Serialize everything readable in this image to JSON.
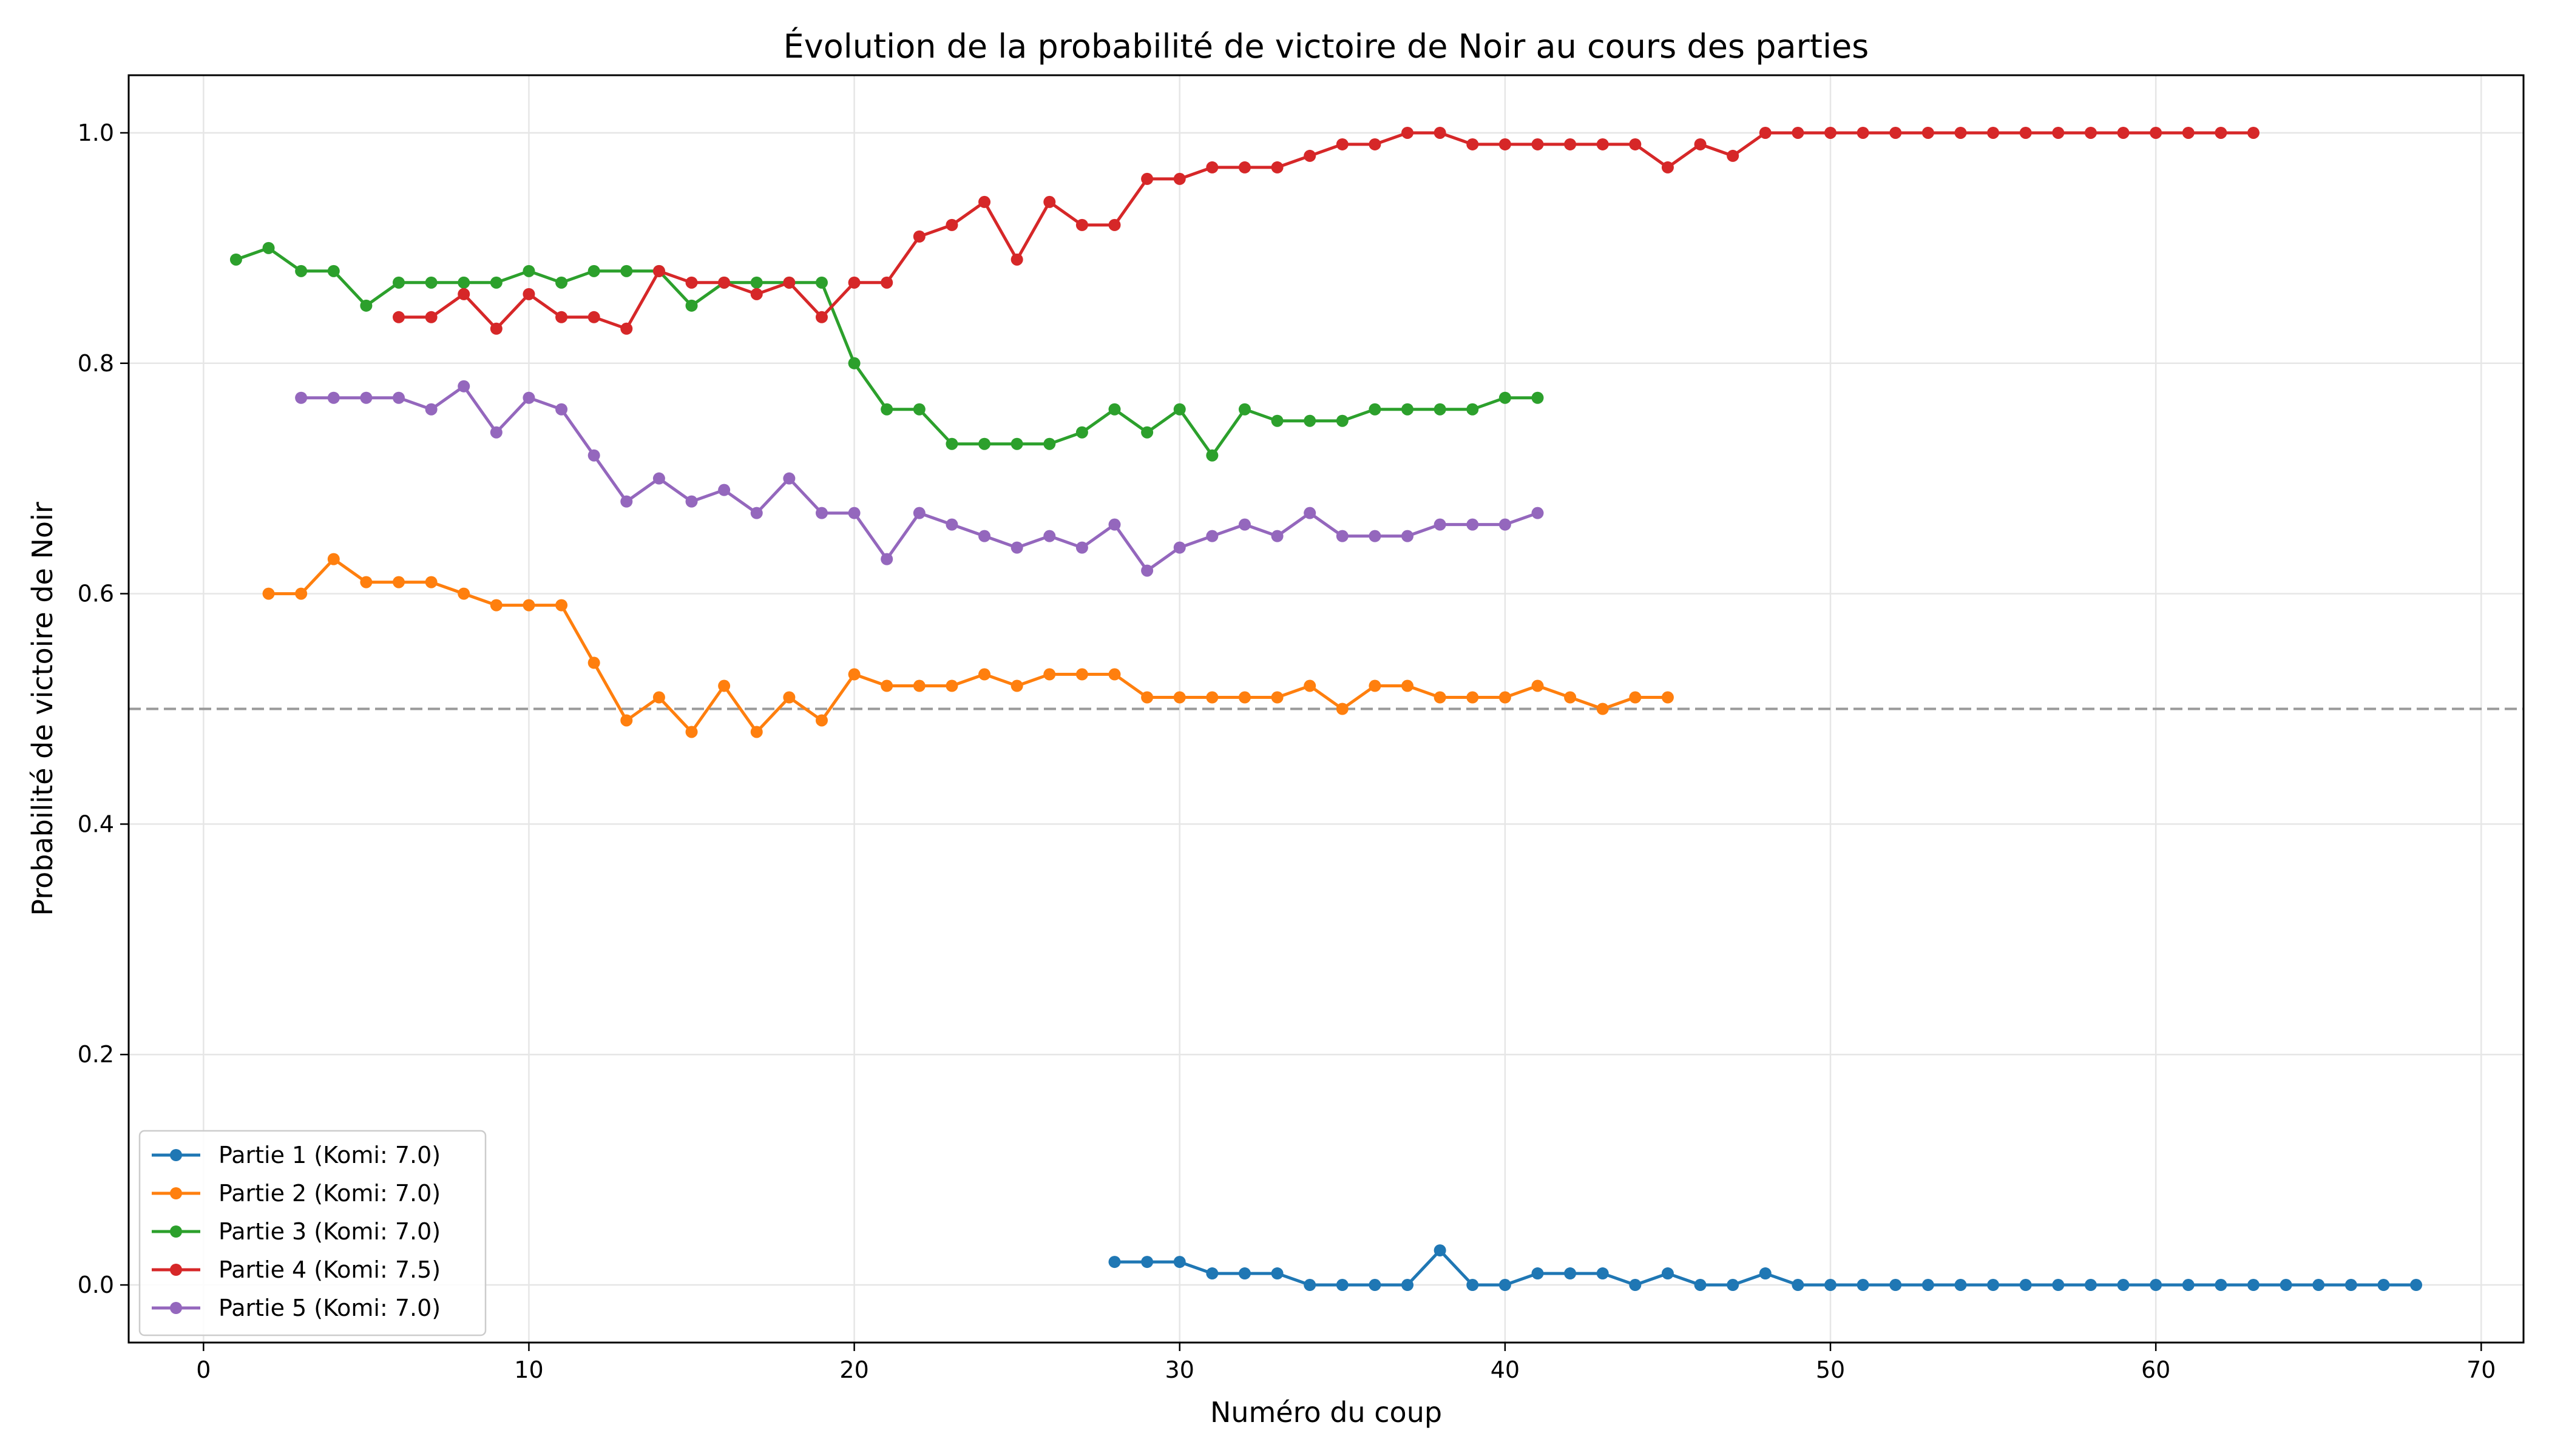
{
  "chart_data": {
    "type": "line",
    "title": "Évolution de la probabilité de victoire de Noir au cours des parties",
    "xlabel": "Numéro du coup",
    "ylabel": "Probabilité de victoire de Noir",
    "xlim": [
      -2.3,
      71.3
    ],
    "ylim": [
      -0.05,
      1.05
    ],
    "xticks": [
      0,
      10,
      20,
      30,
      40,
      50,
      60,
      70
    ],
    "yticks": [
      0.0,
      0.2,
      0.4,
      0.6,
      0.8,
      1.0
    ],
    "xtick_labels": [
      "0",
      "10",
      "20",
      "30",
      "40",
      "50",
      "60",
      "70"
    ],
    "ytick_labels": [
      "0.0",
      "0.2",
      "0.4",
      "0.6",
      "0.8",
      "1.0"
    ],
    "grid": true,
    "legend_position": "lower-left",
    "reference_line": {
      "y": 0.5,
      "style": "dashed",
      "color": "#999999"
    },
    "series": [
      {
        "name": "Partie 1 (Komi: 7.0)",
        "color": "#1f77b4",
        "x": [
          28,
          29,
          30,
          31,
          32,
          33,
          34,
          35,
          36,
          37,
          38,
          39,
          40,
          41,
          42,
          43,
          44,
          45,
          46,
          47,
          48,
          49,
          50,
          51,
          52,
          53,
          54,
          55,
          56,
          57,
          58,
          59,
          60,
          61,
          62,
          63,
          64,
          65,
          66,
          67,
          68
        ],
        "y": [
          0.02,
          0.02,
          0.02,
          0.01,
          0.01,
          0.01,
          0.0,
          0.0,
          0.0,
          0.0,
          0.03,
          0.0,
          0.0,
          0.01,
          0.01,
          0.01,
          0.0,
          0.01,
          0.0,
          0.0,
          0.01,
          0.0,
          0.0,
          0.0,
          0.0,
          0.0,
          0.0,
          0.0,
          0.0,
          0.0,
          0.0,
          0.0,
          0.0,
          0.0,
          0.0,
          0.0,
          0.0,
          0.0,
          0.0,
          0.0,
          0.0
        ]
      },
      {
        "name": "Partie 2 (Komi: 7.0)",
        "color": "#ff7f0e",
        "x": [
          2,
          3,
          4,
          5,
          6,
          7,
          8,
          9,
          10,
          11,
          12,
          13,
          14,
          15,
          16,
          17,
          18,
          19,
          20,
          21,
          22,
          23,
          24,
          25,
          26,
          27,
          28,
          29,
          30,
          31,
          32,
          33,
          34,
          35,
          36,
          37,
          38,
          39,
          40,
          41,
          42,
          43,
          44,
          45
        ],
        "y": [
          0.6,
          0.6,
          0.63,
          0.61,
          0.61,
          0.61,
          0.6,
          0.59,
          0.59,
          0.59,
          0.54,
          0.49,
          0.51,
          0.48,
          0.52,
          0.48,
          0.51,
          0.49,
          0.53,
          0.52,
          0.52,
          0.52,
          0.53,
          0.52,
          0.53,
          0.53,
          0.53,
          0.51,
          0.51,
          0.51,
          0.51,
          0.51,
          0.52,
          0.5,
          0.52,
          0.52,
          0.51,
          0.51,
          0.51,
          0.52,
          0.51,
          0.5,
          0.51,
          0.51
        ]
      },
      {
        "name": "Partie 3 (Komi: 7.0)",
        "color": "#2ca02c",
        "x": [
          1,
          2,
          3,
          4,
          5,
          6,
          7,
          8,
          9,
          10,
          11,
          12,
          13,
          14,
          15,
          16,
          17,
          18,
          19,
          20,
          21,
          22,
          23,
          24,
          25,
          26,
          27,
          28,
          29,
          30,
          31,
          32,
          33,
          34,
          35,
          36,
          37,
          38,
          39,
          40,
          41
        ],
        "y": [
          0.89,
          0.9,
          0.88,
          0.88,
          0.85,
          0.87,
          0.87,
          0.87,
          0.87,
          0.88,
          0.87,
          0.88,
          0.88,
          0.88,
          0.85,
          0.87,
          0.87,
          0.87,
          0.87,
          0.8,
          0.76,
          0.76,
          0.73,
          0.73,
          0.73,
          0.73,
          0.74,
          0.76,
          0.74,
          0.76,
          0.72,
          0.76,
          0.75,
          0.75,
          0.75,
          0.76,
          0.76,
          0.76,
          0.76,
          0.77,
          0.77
        ]
      },
      {
        "name": "Partie 4 (Komi: 7.5)",
        "color": "#d62728",
        "x": [
          6,
          7,
          8,
          9,
          10,
          11,
          12,
          13,
          14,
          15,
          16,
          17,
          18,
          19,
          20,
          21,
          22,
          23,
          24,
          25,
          26,
          27,
          28,
          29,
          30,
          31,
          32,
          33,
          34,
          35,
          36,
          37,
          38,
          39,
          40,
          41,
          42,
          43,
          44,
          45,
          46,
          47,
          48,
          49,
          50,
          51,
          52,
          53,
          54,
          55,
          56,
          57,
          58,
          59,
          60,
          61,
          62,
          63
        ],
        "y": [
          0.84,
          0.84,
          0.86,
          0.83,
          0.86,
          0.84,
          0.84,
          0.83,
          0.88,
          0.87,
          0.87,
          0.86,
          0.87,
          0.84,
          0.87,
          0.87,
          0.91,
          0.92,
          0.94,
          0.89,
          0.94,
          0.92,
          0.92,
          0.96,
          0.96,
          0.97,
          0.97,
          0.97,
          0.98,
          0.99,
          0.99,
          1.0,
          1.0,
          0.99,
          0.99,
          0.99,
          0.99,
          0.99,
          0.99,
          0.97,
          0.99,
          0.98,
          1.0,
          1.0,
          1.0,
          1.0,
          1.0,
          1.0,
          1.0,
          1.0,
          1.0,
          1.0,
          1.0,
          1.0,
          1.0,
          1.0,
          1.0,
          1.0
        ]
      },
      {
        "name": "Partie 5 (Komi: 7.0)",
        "color": "#9467bd",
        "x": [
          3,
          4,
          5,
          6,
          7,
          8,
          9,
          10,
          11,
          12,
          13,
          14,
          15,
          16,
          17,
          18,
          19,
          20,
          21,
          22,
          23,
          24,
          25,
          26,
          27,
          28,
          29,
          30,
          31,
          32,
          33,
          34,
          35,
          36,
          37,
          38,
          39,
          40,
          41
        ],
        "y": [
          0.77,
          0.77,
          0.77,
          0.77,
          0.76,
          0.78,
          0.74,
          0.77,
          0.76,
          0.72,
          0.68,
          0.7,
          0.68,
          0.69,
          0.67,
          0.7,
          0.67,
          0.67,
          0.63,
          0.67,
          0.66,
          0.65,
          0.64,
          0.65,
          0.64,
          0.66,
          0.62,
          0.64,
          0.65,
          0.66,
          0.65,
          0.67,
          0.65,
          0.65,
          0.65,
          0.66,
          0.66,
          0.66,
          0.67
        ]
      }
    ]
  }
}
